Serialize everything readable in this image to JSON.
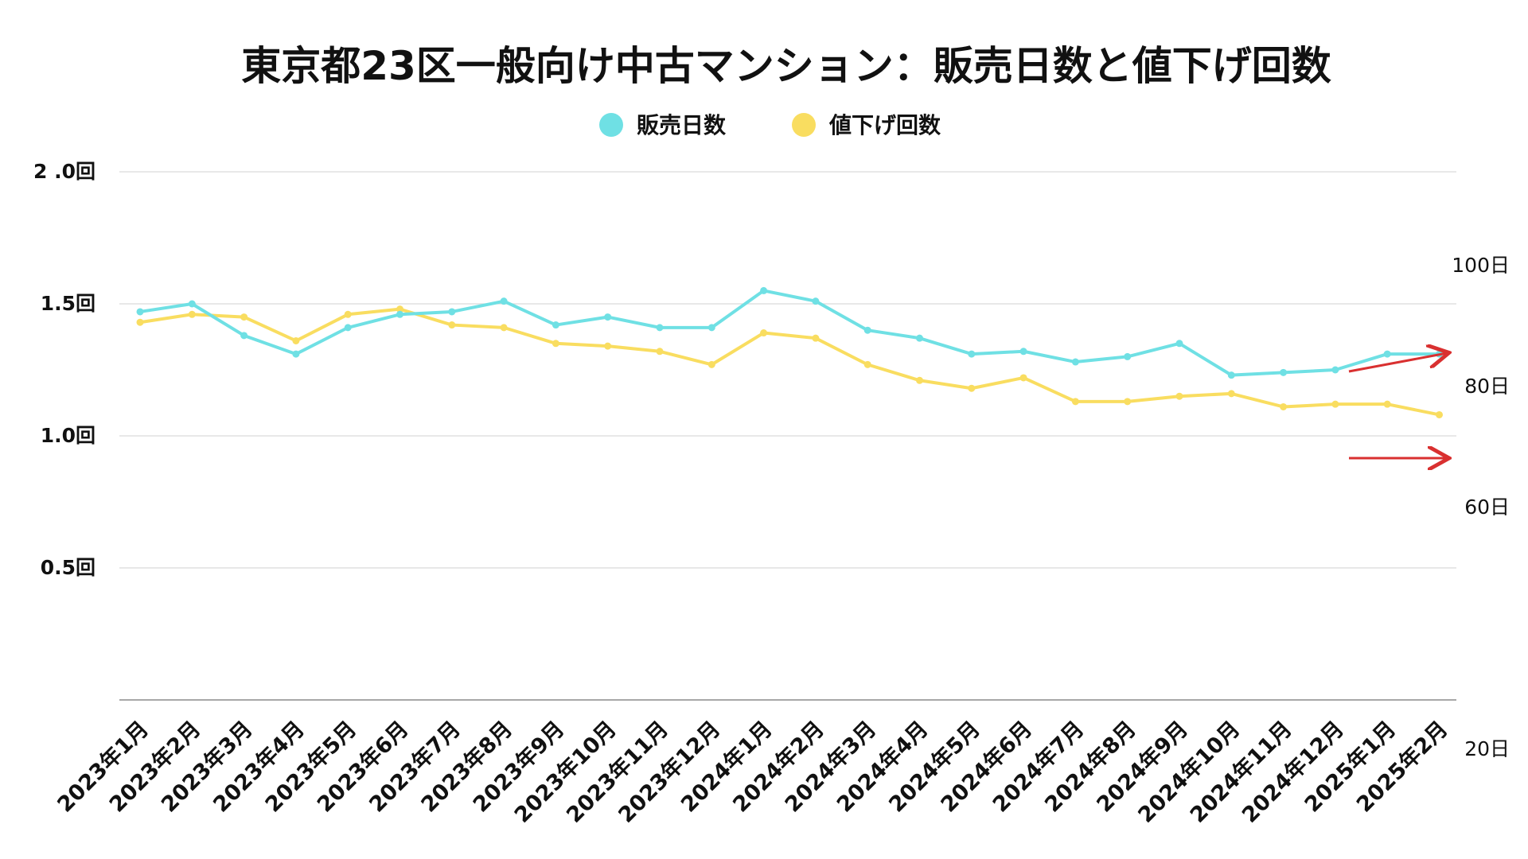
{
  "chart_data": {
    "type": "line",
    "title": "東京都23区一般向け中古マンション：販売日数と値下げ回数",
    "legend_position": "top-center",
    "grid": true,
    "categories": [
      "2023年1月",
      "2023年2月",
      "2023年3月",
      "2023年4月",
      "2023年5月",
      "2023年6月",
      "2023年7月",
      "2023年8月",
      "2023年9月",
      "2023年10月",
      "2023年11月",
      "2023年12月",
      "2024年1月",
      "2024年2月",
      "2024年3月",
      "2024年4月",
      "2024年5月",
      "2024年6月",
      "2024年7月",
      "2024年8月",
      "2024年9月",
      "2024年10月",
      "2024年11月",
      "2024年12月",
      "2025年1月",
      "2025年2月"
    ],
    "y_left": {
      "ylim": [
        0,
        2.0
      ],
      "ticks": [
        {
          "value": 0.5,
          "label": "0.5回"
        },
        {
          "value": 1.0,
          "label": "1.0回"
        },
        {
          "value": 1.5,
          "label": "1.5回"
        },
        {
          "value": 2.0,
          "label": "2 .0回"
        }
      ]
    },
    "y_right": {
      "ticks": [
        {
          "value": 20,
          "label": "20日"
        },
        {
          "value": 60,
          "label": "60日"
        },
        {
          "value": 80,
          "label": "80日"
        },
        {
          "value": 100,
          "label": "100日"
        }
      ]
    },
    "series": [
      {
        "name": "販売日数",
        "color": "#6fe0e4",
        "values": [
          1.47,
          1.5,
          1.38,
          1.31,
          1.41,
          1.46,
          1.47,
          1.51,
          1.42,
          1.45,
          1.41,
          1.41,
          1.55,
          1.51,
          1.4,
          1.37,
          1.31,
          1.32,
          1.28,
          1.3,
          1.35,
          1.23,
          1.24,
          1.25,
          1.31,
          1.31
        ]
      },
      {
        "name": "値下げ回数",
        "color": "#f9dd60",
        "values": [
          1.43,
          1.46,
          1.45,
          1.36,
          1.46,
          1.48,
          1.42,
          1.41,
          1.35,
          1.34,
          1.32,
          1.27,
          1.39,
          1.37,
          1.27,
          1.21,
          1.18,
          1.22,
          1.13,
          1.13,
          1.15,
          1.16,
          1.11,
          1.12,
          1.12,
          1.08
        ]
      }
    ],
    "annotations": [
      {
        "type": "arrow",
        "color": "#d93030",
        "direction": "up-right"
      },
      {
        "type": "arrow",
        "color": "#d93030",
        "direction": "right"
      }
    ]
  }
}
